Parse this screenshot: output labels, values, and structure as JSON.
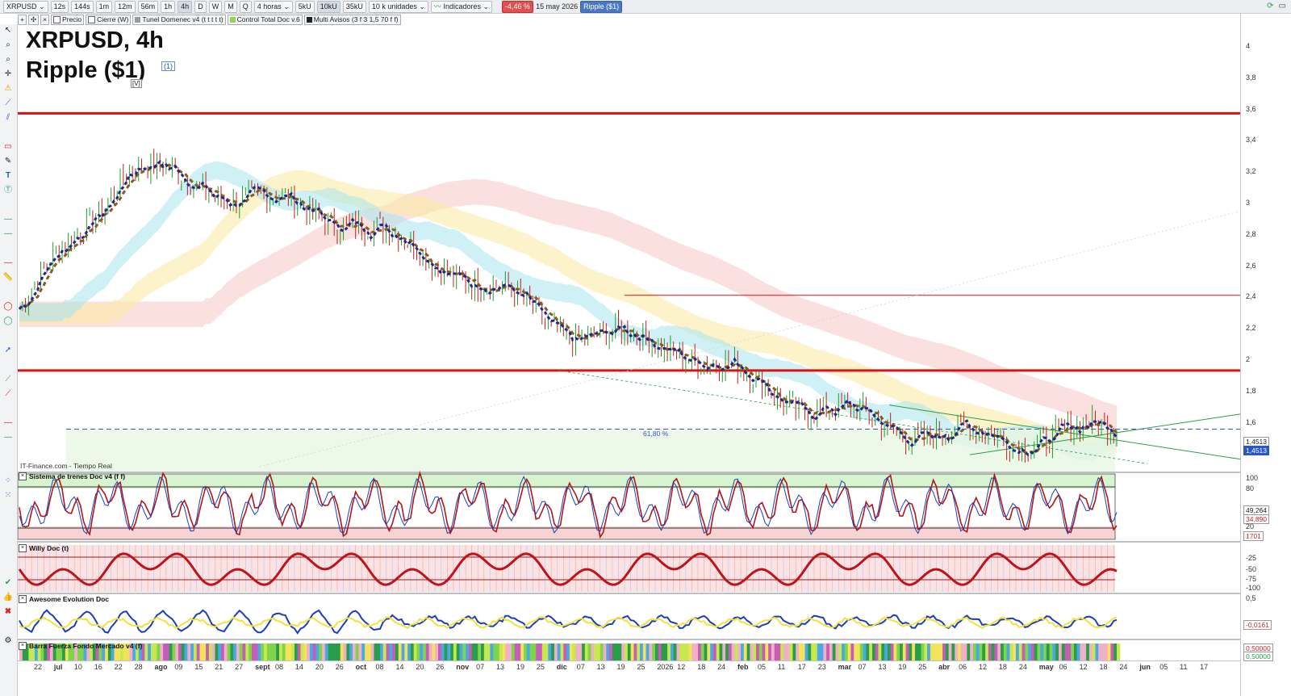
{
  "toolbar": {
    "symbol": "XRPUSD",
    "buttons": [
      "12s",
      "144s",
      "1m",
      "12m",
      "56m",
      "1h",
      "4h",
      "D",
      "W",
      "M",
      "Q"
    ],
    "active": "4h",
    "timeframe_select": "4 horas",
    "unit_buttons": [
      "5kU",
      "10kU",
      "35kU"
    ],
    "active_unit": "10kU",
    "units_select": "10 k unidades",
    "indicators_label": "Indicadores",
    "change_badge": "-4,46 %",
    "date": "15 may 2026",
    "symbol_badge": "Ripple ($1)"
  },
  "indicator_bar": [
    {
      "label": "Precio",
      "color": "#ffffff"
    },
    {
      "label": "Cierre (W)",
      "color": "#ffffff"
    },
    {
      "label": "Tunel Domenec v4 (t t t t t)",
      "color": "#9a9a9a"
    },
    {
      "label": "Control Total Doc v.6",
      "color": "#9ad05a"
    },
    {
      "label": "Multi Avisos (3 f 3 1,5 70 f f)",
      "color": "#222222"
    }
  ],
  "chart_title": {
    "line1": "XRPUSD, 4h",
    "line2": "Ripple ($1)",
    "marker_v": "[V]",
    "marker_1": "(1)"
  },
  "price_ticks": [
    "4",
    "3,8",
    "3,6",
    "3,4",
    "3,2",
    "3",
    "2,8",
    "2,6",
    "2,4",
    "2,2",
    "2",
    "1,8",
    "1,6"
  ],
  "price_labels": {
    "upper": "1,4513",
    "lower": "1,4513"
  },
  "fib_label": "61,80 %",
  "source": "IT-Finance.com - Tiempo Real",
  "panels": {
    "p1": {
      "title": "Sistema de trenes Doc v4 (f f)",
      "ticks": [
        "100",
        "80",
        "49,264",
        "34,890",
        "20",
        "1701"
      ]
    },
    "p2": {
      "title": "Willy Doc (t)",
      "ticks": [
        "-25",
        "-50",
        "-75",
        "-100"
      ]
    },
    "p3": {
      "title": "Awesome Evolution Doc",
      "ticks": [
        "0,5",
        "-0,0161"
      ]
    },
    "p4": {
      "title": "Barra Fuerza Fondo Mercado v4 (f)",
      "ticks": [
        "0,50000",
        "0,50000"
      ]
    }
  },
  "date_labels": [
    "22",
    "jul",
    "10",
    "16",
    "22",
    "28",
    "ago",
    "09",
    "15",
    "21",
    "27",
    "sept",
    "08",
    "14",
    "20",
    "26",
    "oct",
    "08",
    "14",
    "20",
    "26",
    "nov",
    "07",
    "13",
    "19",
    "25",
    "dic",
    "07",
    "13",
    "19",
    "25",
    "2026",
    "12",
    "18",
    "24",
    "feb",
    "05",
    "11",
    "17",
    "23",
    "mar",
    "07",
    "13",
    "19",
    "25",
    "abr",
    "06",
    "12",
    "18",
    "24",
    "may",
    "06",
    "12",
    "18",
    "24",
    "jun",
    "05",
    "11",
    "17"
  ],
  "chart_data": {
    "type": "line",
    "title": "XRPUSD, 4h",
    "subtitle": "Ripple ($1)",
    "x": [
      "jul",
      "ago",
      "sept",
      "oct",
      "nov",
      "dic",
      "2026",
      "feb",
      "mar",
      "abr",
      "may"
    ],
    "series": [
      {
        "values": [
          2.25,
          3.2,
          3.0,
          2.85,
          2.5,
          2.1,
          2.0,
          1.65,
          1.45,
          1.38,
          1.45
        ]
      }
    ],
    "ylim": [
      1.2,
      4.1
    ],
    "horizontal_levels": [
      3.55,
      1.84,
      2.34,
      1.45
    ],
    "fib_level": 1.45
  }
}
